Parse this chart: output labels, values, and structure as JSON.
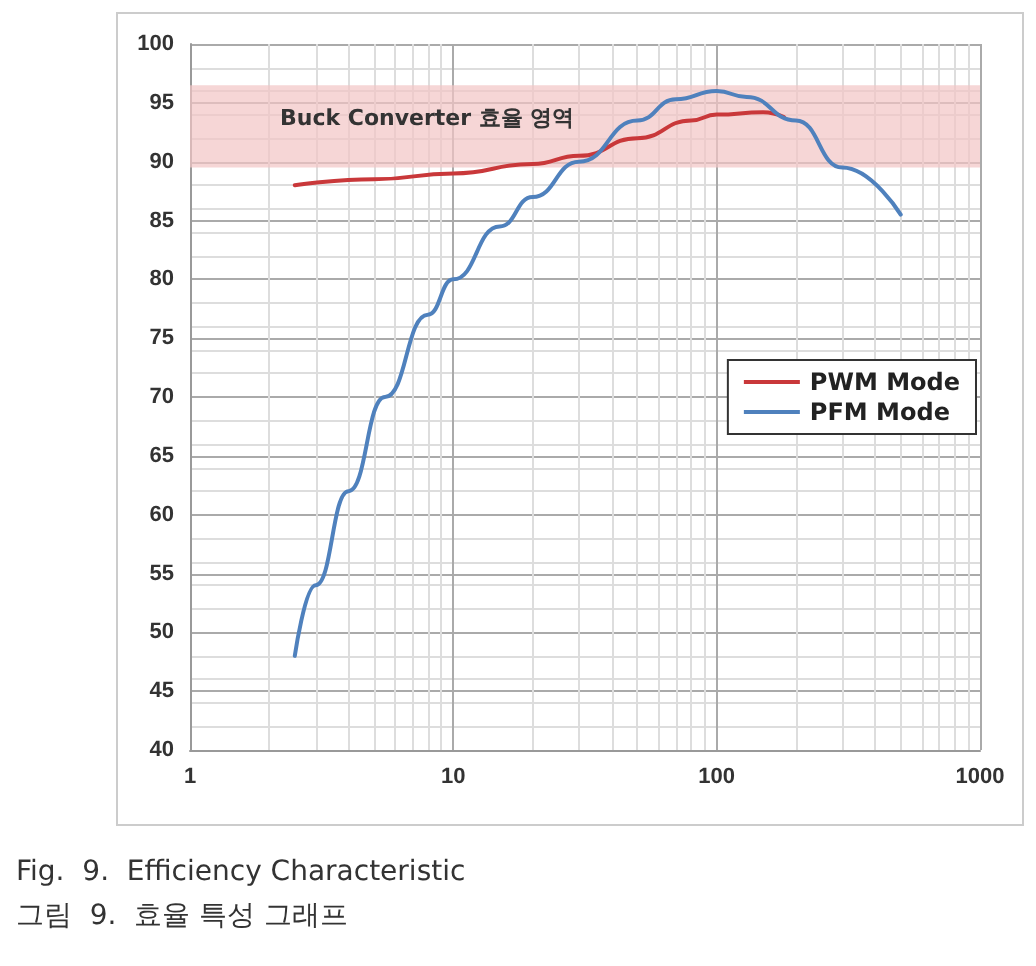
{
  "chart_data": {
    "type": "line",
    "log": "x",
    "grid": true,
    "legend": "right",
    "marker": "none",
    "line_style": "solid",
    "xlim": [
      1,
      1000
    ],
    "xticks": [
      1,
      10,
      100,
      1000
    ],
    "ylim": [
      40,
      100
    ],
    "yticks": [
      40,
      45,
      50,
      55,
      60,
      65,
      70,
      75,
      80,
      85,
      90,
      95,
      100
    ],
    "series": [
      {
        "name": "PWM Mode",
        "color": "#c9383a",
        "x": [
          2.5,
          5,
          10,
          20,
          30,
          50,
          80,
          100,
          150,
          180
        ],
        "values": [
          88,
          88.5,
          89,
          89.8,
          90.5,
          92,
          93.5,
          94,
          94.2,
          93.8
        ]
      },
      {
        "name": "PFM Mode",
        "color": "#4f81bd",
        "x": [
          2.5,
          3,
          4,
          5.5,
          8,
          10,
          15,
          20,
          30,
          50,
          70,
          100,
          130,
          200,
          300,
          500
        ],
        "values": [
          48,
          54,
          62,
          70,
          77,
          80,
          84.5,
          87,
          90,
          93.5,
          95.3,
          96,
          95.5,
          93.5,
          89.5,
          85.5
        ]
      }
    ],
    "bands": [
      {
        "axis": "y",
        "from": 89.5,
        "to": 96.5,
        "label": "Buck Converter 효율 영역",
        "color": "#f2c4c4"
      }
    ],
    "annotations": [
      "Fig.  9.  Efficiency Characteristic",
      "그림  9.  효율 특성 그래프"
    ]
  }
}
